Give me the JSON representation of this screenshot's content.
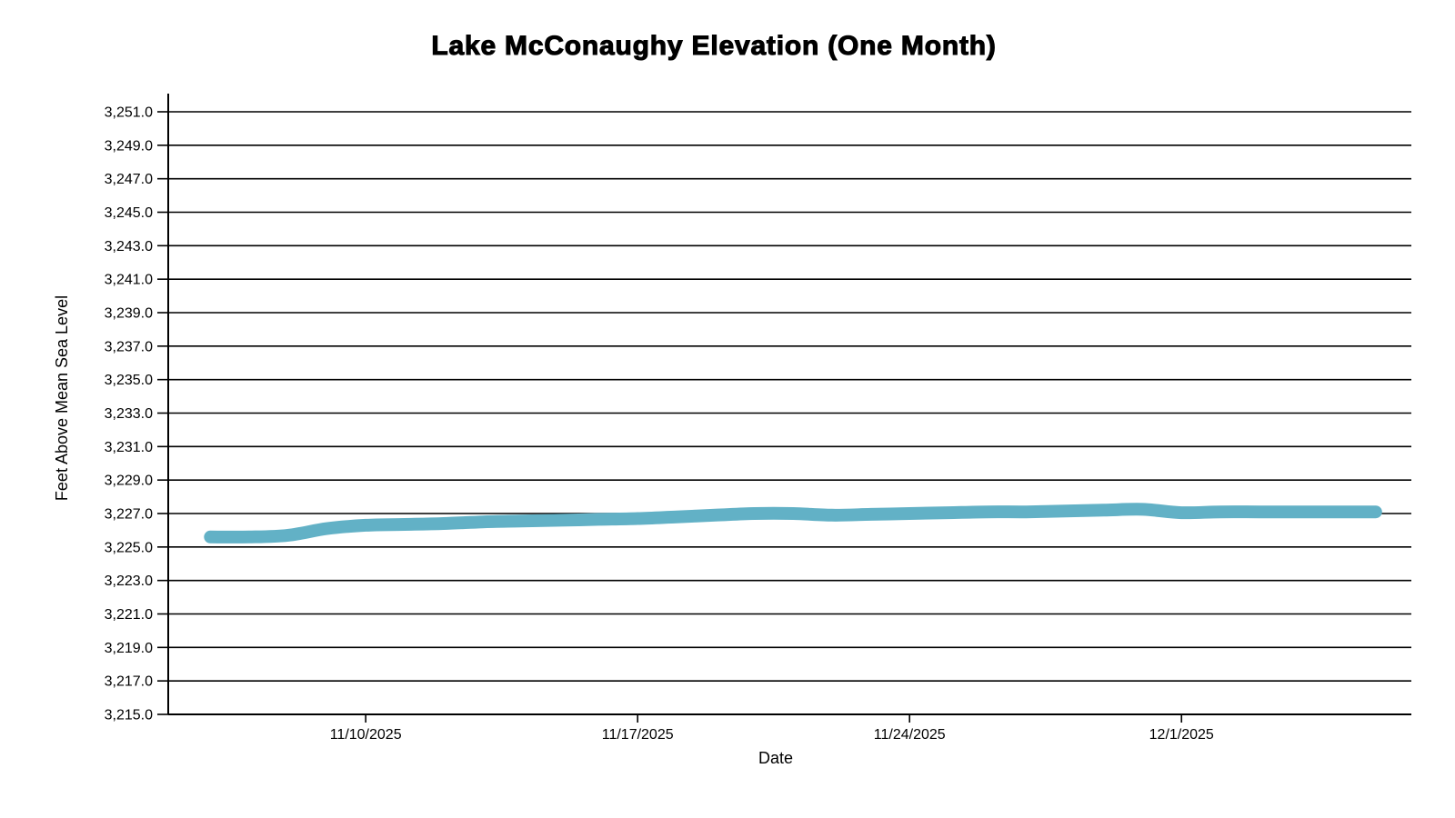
{
  "chart_data": {
    "type": "line",
    "title": "Lake McConaughy Elevation (One Month)",
    "xlabel": "Date",
    "ylabel": "Feet Above Mean Sea Level",
    "background_color": "#FFFFFF",
    "text_color": "#000000",
    "grid": "horizontal",
    "gridline_color": "#000000",
    "line_color": "#62B1C6",
    "line_width": 14,
    "ylim": [
      3215.0,
      3251.0
    ],
    "y_tick_step": 2.0,
    "y_ticks": [
      3215.0,
      3217.0,
      3219.0,
      3221.0,
      3223.0,
      3225.0,
      3227.0,
      3229.0,
      3231.0,
      3233.0,
      3235.0,
      3237.0,
      3239.0,
      3241.0,
      3243.0,
      3245.0,
      3247.0,
      3249.0,
      3251.0
    ],
    "y_tick_labels": [
      "3,215.0",
      "3,217.0",
      "3,219.0",
      "3,221.0",
      "3,223.0",
      "3,225.0",
      "3,227.0",
      "3,229.0",
      "3,231.0",
      "3,233.0",
      "3,235.0",
      "3,237.0",
      "3,239.0",
      "3,241.0",
      "3,243.0",
      "3,245.0",
      "3,247.0",
      "3,249.0",
      "3,251.0"
    ],
    "x_domain": [
      "11/4/2025 22:00",
      "12/6/2025 22:00"
    ],
    "x_tick_labels": [
      "11/10/2025",
      "11/17/2025",
      "11/24/2025",
      "12/1/2025"
    ],
    "series": [
      {
        "name": "Lake McConaughy Elevation",
        "unit": "feet above mean sea level",
        "points": [
          {
            "date": "11/6/2025",
            "value": 3225.6
          },
          {
            "date": "11/7/2025",
            "value": 3225.6
          },
          {
            "date": "11/8/2025",
            "value": 3225.7
          },
          {
            "date": "11/9/2025",
            "value": 3226.1
          },
          {
            "date": "11/10/2025",
            "value": 3226.3
          },
          {
            "date": "11/11/2025",
            "value": 3226.35
          },
          {
            "date": "11/12/2025",
            "value": 3226.4
          },
          {
            "date": "11/13/2025",
            "value": 3226.5
          },
          {
            "date": "11/14/2025",
            "value": 3226.55
          },
          {
            "date": "11/15/2025",
            "value": 3226.6
          },
          {
            "date": "11/16/2025",
            "value": 3226.65
          },
          {
            "date": "11/17/2025",
            "value": 3226.7
          },
          {
            "date": "11/18/2025",
            "value": 3226.8
          },
          {
            "date": "11/19/2025",
            "value": 3226.9
          },
          {
            "date": "11/20/2025",
            "value": 3227.0
          },
          {
            "date": "11/21/2025",
            "value": 3227.0
          },
          {
            "date": "11/22/2025",
            "value": 3226.9
          },
          {
            "date": "11/23/2025",
            "value": 3226.95
          },
          {
            "date": "11/24/2025",
            "value": 3227.0
          },
          {
            "date": "11/25/2025",
            "value": 3227.05
          },
          {
            "date": "11/26/2025",
            "value": 3227.1
          },
          {
            "date": "11/27/2025",
            "value": 3227.1
          },
          {
            "date": "11/28/2025",
            "value": 3227.15
          },
          {
            "date": "11/29/2025",
            "value": 3227.2
          },
          {
            "date": "11/30/2025",
            "value": 3227.25
          },
          {
            "date": "12/1/2025",
            "value": 3227.05
          },
          {
            "date": "12/2/2025",
            "value": 3227.1
          },
          {
            "date": "12/3/2025",
            "value": 3227.1
          },
          {
            "date": "12/4/2025",
            "value": 3227.1
          },
          {
            "date": "12/5/2025",
            "value": 3227.1
          },
          {
            "date": "12/6/2025",
            "value": 3227.1
          }
        ]
      }
    ]
  }
}
